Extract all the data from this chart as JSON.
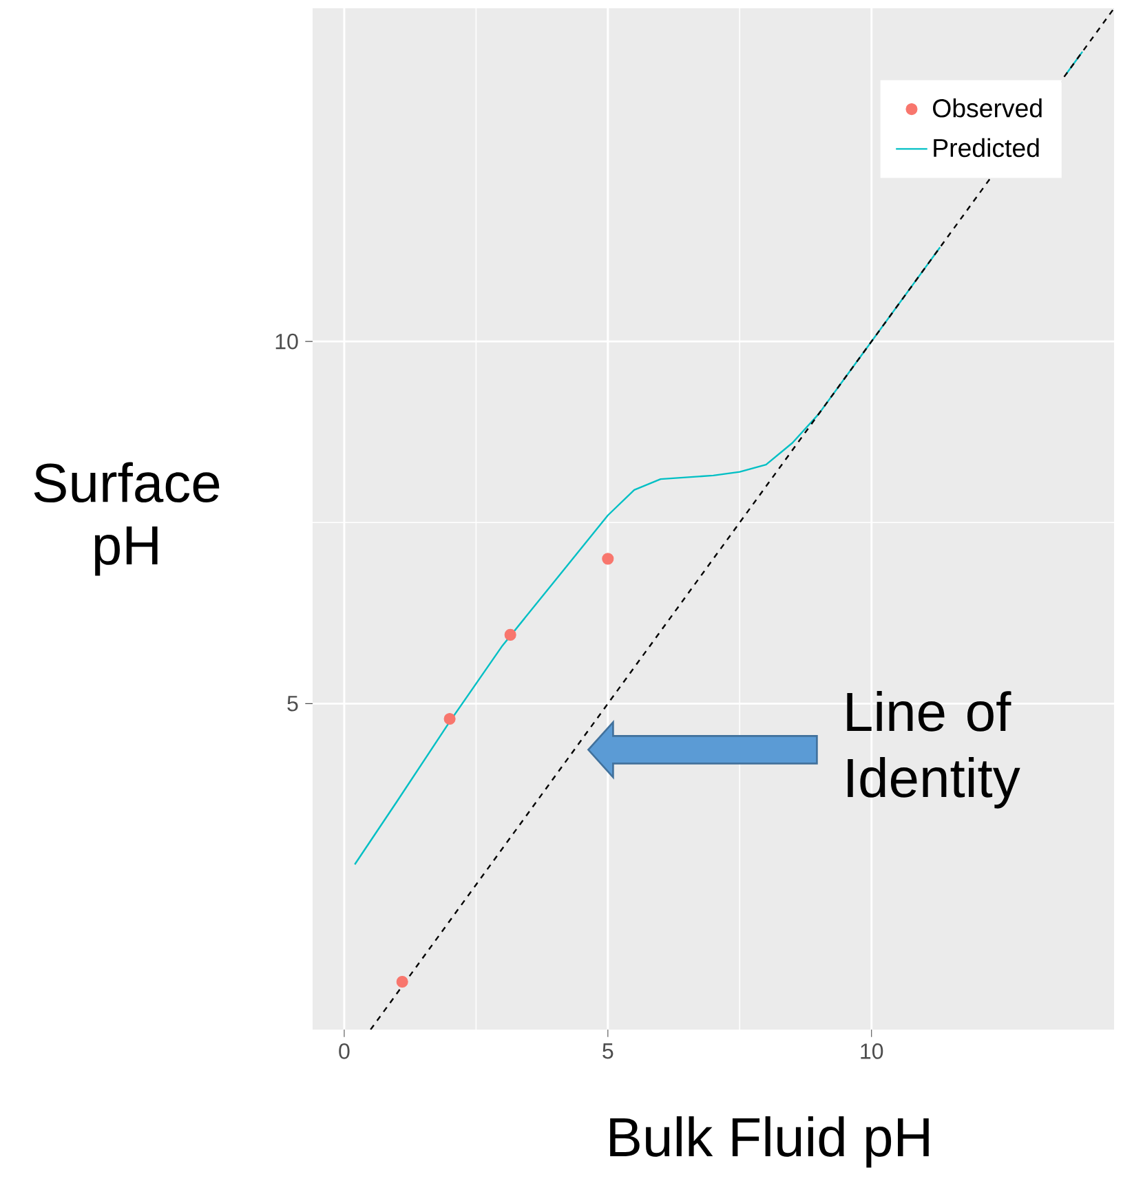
{
  "chart_data": {
    "type": "scatter",
    "xlabel": "Bulk Fluid pH",
    "ylabel": "Surface pH",
    "xlim": [
      -0.6,
      14.6
    ],
    "ylim": [
      0.5,
      14.6
    ],
    "xticks": [
      0,
      5,
      10
    ],
    "yticks": [
      5,
      10
    ],
    "grid": true,
    "legend": "top right",
    "series": [
      {
        "name": "Observed",
        "color": "#f8766d",
        "marker": "circle",
        "x": [
          1.1,
          2.0,
          3.15,
          5.0
        ],
        "values": [
          1.16,
          4.79,
          5.95,
          7.0
        ]
      },
      {
        "name": "Predicted",
        "type": "line",
        "color": "#00bfc4",
        "marker": "none",
        "line_style": "solid",
        "x": [
          0.2,
          1.0,
          2.0,
          3.0,
          4.0,
          5.0,
          5.5,
          6.0,
          7.0,
          7.5,
          8.0,
          8.5,
          9.0,
          10.0,
          11.0,
          11.3,
          12.0,
          13.0,
          13.7,
          14.0
        ],
        "values": [
          2.78,
          3.65,
          4.75,
          5.8,
          6.7,
          7.6,
          7.95,
          8.1,
          8.15,
          8.2,
          8.3,
          8.6,
          9.0,
          10.0,
          11.0,
          11.3,
          null,
          null,
          13.7,
          14.0
        ]
      },
      {
        "type": "line",
        "color": "#000000",
        "marker": "none",
        "line_style": "dashed",
        "x": [
          0.5,
          14.6
        ],
        "values": [
          0.5,
          14.6
        ]
      }
    ],
    "annotations": [
      "Line of Identity"
    ]
  }
}
